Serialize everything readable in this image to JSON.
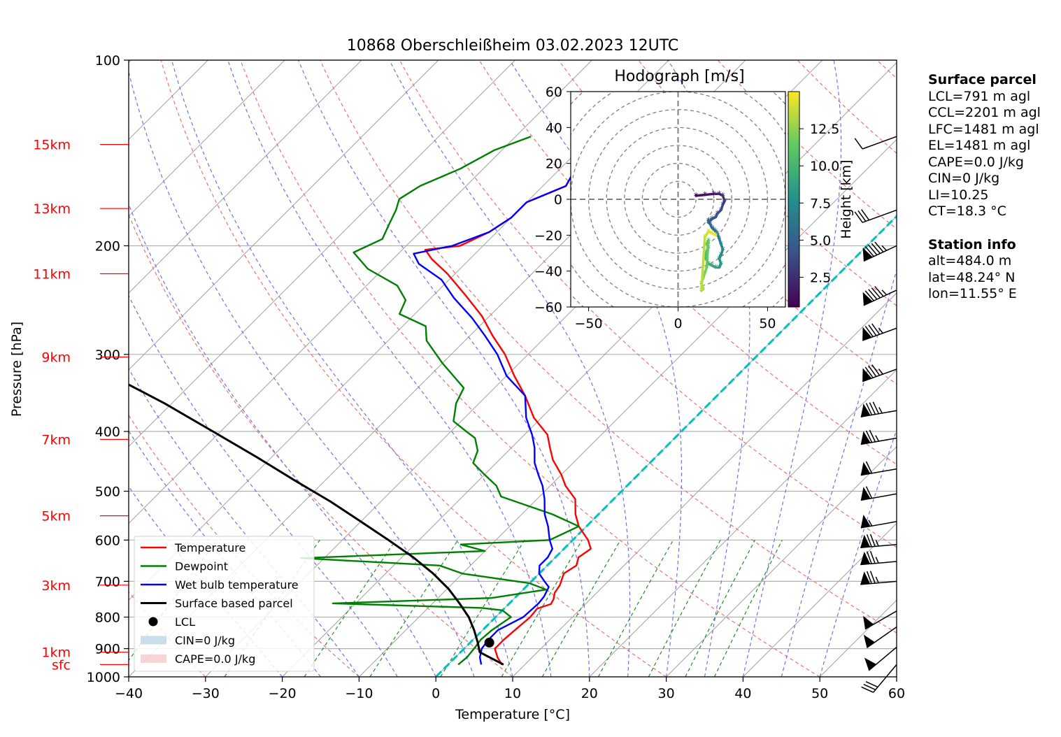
{
  "chart_data": {
    "type": "skew-t",
    "title": "10868 Oberschleißheim 03.02.2023 12UTC",
    "xlabel": "Temperature [°C]",
    "ylabel": "Pressure [hPa]",
    "xlim": [
      -40,
      60
    ],
    "ylim": [
      1000,
      100
    ],
    "x_ticks": [
      -40,
      -30,
      -20,
      -10,
      0,
      10,
      20,
      30,
      40,
      50,
      60
    ],
    "p_ticks": [
      100,
      200,
      300,
      400,
      500,
      600,
      700,
      800,
      900,
      1000
    ],
    "height_labels": [
      {
        "label": "15km",
        "p": 137
      },
      {
        "label": "13km",
        "p": 174
      },
      {
        "label": "11km",
        "p": 222
      },
      {
        "label": "9km",
        "p": 303
      },
      {
        "label": "7km",
        "p": 412
      },
      {
        "label": "5km",
        "p": 548
      },
      {
        "label": "3km",
        "p": 710
      },
      {
        "label": "1km",
        "p": 912
      },
      {
        "label": "sfc",
        "p": 955
      }
    ],
    "legend_position": "lower-left",
    "legend": [
      "Temperature",
      "Dewpoint",
      "Wet bulb temperature",
      "Surface based parcel",
      "LCL",
      "CIN=0 J/kg",
      "CAPE=0.0 J/kg"
    ],
    "colors": {
      "temperature": "#ff0000",
      "dewpoint": "#008000",
      "wetbulb": "#0000ff",
      "parcel": "#000000",
      "isotherm": "#00c0c0",
      "dry_adiabat": "#f07070",
      "moist_adiabat": "#7070f0",
      "mixing_ratio": "#209020",
      "skew_isotherm": "#a0a0a0",
      "height_label": "#ff0000",
      "cin": "#a8c8e0",
      "cape": "#f4b8b8"
    },
    "zero_isotherm_dashed": true,
    "series": [
      {
        "name": "Temperature",
        "points": [
          [
            7.0,
            955
          ],
          [
            5.5,
            930
          ],
          [
            4.0,
            900
          ],
          [
            4.0,
            870
          ],
          [
            4.2,
            840
          ],
          [
            4.5,
            800
          ],
          [
            4.3,
            775
          ],
          [
            5.5,
            762
          ],
          [
            5.2,
            748
          ],
          [
            4.5,
            730
          ],
          [
            4.2,
            710
          ],
          [
            3.2,
            680
          ],
          [
            3.8,
            660
          ],
          [
            3.0,
            640
          ],
          [
            3.5,
            620
          ],
          [
            2.0,
            600
          ],
          [
            -1,
            570
          ],
          [
            -3,
            545
          ],
          [
            -5,
            515
          ],
          [
            -8,
            490
          ],
          [
            -10,
            470
          ],
          [
            -13,
            445
          ],
          [
            -15,
            425
          ],
          [
            -17,
            405
          ],
          [
            -21,
            380
          ],
          [
            -25,
            350
          ],
          [
            -29,
            325
          ],
          [
            -33,
            300
          ],
          [
            -37,
            280
          ],
          [
            -41,
            260
          ],
          [
            -46,
            240
          ],
          [
            -51,
            222
          ],
          [
            -55,
            210
          ],
          [
            -57,
            203
          ],
          [
            -53,
            200
          ],
          [
            -51,
            190
          ],
          [
            -50,
            180
          ],
          [
            -50,
            170
          ],
          [
            -47,
            160
          ],
          [
            -48,
            150
          ],
          [
            -46,
            140
          ],
          [
            -45,
            133
          ]
        ]
      },
      {
        "name": "Dewpoint",
        "points": [
          [
            1.3,
            955
          ],
          [
            1.5,
            930
          ],
          [
            1.3,
            900
          ],
          [
            1.0,
            870
          ],
          [
            1.2,
            840
          ],
          [
            2.0,
            800
          ],
          [
            0.0,
            780
          ],
          [
            -3.0,
            773
          ],
          [
            -23,
            760
          ],
          [
            -3,
            745
          ],
          [
            3.0,
            722
          ],
          [
            0.0,
            705
          ],
          [
            -10,
            680
          ],
          [
            -14,
            660
          ],
          [
            -33,
            642
          ],
          [
            -10,
            625
          ],
          [
            -14,
            610
          ],
          [
            -3,
            600
          ],
          [
            -1,
            570
          ],
          [
            -6,
            545
          ],
          [
            -15,
            510
          ],
          [
            -17,
            490
          ],
          [
            -20,
            470
          ],
          [
            -23,
            450
          ],
          [
            -24,
            430
          ],
          [
            -26,
            410
          ],
          [
            -28,
            400
          ],
          [
            -31,
            385
          ],
          [
            -33,
            360
          ],
          [
            -34,
            340
          ],
          [
            -40,
            310
          ],
          [
            -45,
            285
          ],
          [
            -47,
            270
          ],
          [
            -52,
            258
          ],
          [
            -53,
            245
          ],
          [
            -56,
            232
          ],
          [
            -62,
            218
          ],
          [
            -66,
            205
          ],
          [
            -64,
            195
          ],
          [
            -65,
            185
          ],
          [
            -66,
            175
          ],
          [
            -67,
            168
          ],
          [
            -66,
            160
          ],
          [
            -63,
            150
          ],
          [
            -61,
            140
          ],
          [
            -58,
            133
          ]
        ]
      },
      {
        "name": "Wet bulb temperature",
        "points": [
          [
            4.3,
            955
          ],
          [
            3.2,
            930
          ],
          [
            2.3,
            900
          ],
          [
            2.0,
            870
          ],
          [
            2.0,
            840
          ],
          [
            3.6,
            800
          ],
          [
            3.8,
            760
          ],
          [
            3.6,
            740
          ],
          [
            3.0,
            715
          ],
          [
            1.7,
            700
          ],
          [
            0.0,
            680
          ],
          [
            -1.0,
            660
          ],
          [
            -1.0,
            640
          ],
          [
            -1.5,
            620
          ],
          [
            -3.0,
            600
          ],
          [
            -5,
            570
          ],
          [
            -7,
            545
          ],
          [
            -9,
            515
          ],
          [
            -11,
            490
          ],
          [
            -13,
            470
          ],
          [
            -15,
            450
          ],
          [
            -17,
            425
          ],
          [
            -19,
            405
          ],
          [
            -22,
            380
          ],
          [
            -25,
            350
          ],
          [
            -30,
            325
          ],
          [
            -34,
            300
          ],
          [
            -38,
            280
          ],
          [
            -42,
            262
          ],
          [
            -47,
            243
          ],
          [
            -51,
            227
          ],
          [
            -56,
            214
          ],
          [
            -58,
            206
          ],
          [
            -54,
            200
          ],
          [
            -51,
            190
          ],
          [
            -50,
            180
          ],
          [
            -50,
            170
          ],
          [
            -47,
            160
          ],
          [
            -48,
            150
          ],
          [
            -46,
            140
          ],
          [
            -45,
            133
          ]
        ]
      },
      {
        "name": "Surface based parcel",
        "points": [
          [
            7.2,
            955
          ],
          [
            2.5,
            912
          ],
          [
            1.0,
            880
          ],
          [
            -1.1,
            840
          ],
          [
            -3.5,
            800
          ],
          [
            -6.5,
            760
          ],
          [
            -9.8,
            720
          ],
          [
            -13.8,
            680
          ],
          [
            -18.5,
            640
          ],
          [
            -24,
            600
          ],
          [
            -30,
            560
          ],
          [
            -36.5,
            520
          ],
          [
            -44,
            480
          ],
          [
            -52,
            440
          ],
          [
            -61,
            400
          ],
          [
            -71,
            360
          ],
          [
            -83,
            320
          ],
          [
            -96,
            280
          ],
          [
            -112,
            240
          ],
          [
            -120,
            222
          ]
        ]
      }
    ],
    "lcl": {
      "t": 2.5,
      "p": 880
    },
    "hodograph": {
      "title": "Hodograph [m/s]",
      "xlim": [
        -60,
        60
      ],
      "ylim": [
        -60,
        60
      ],
      "x_ticks": [
        -50,
        0,
        50
      ],
      "y_ticks": [
        60,
        40,
        20,
        0,
        -20,
        -40,
        -60
      ],
      "ring_step": 10,
      "colorbar": {
        "label": "Height [km]",
        "ticks": [
          2.5,
          5.0,
          7.5,
          10.0,
          12.5
        ],
        "min": 0.5,
        "max": 15
      },
      "points": [
        [
          10,
          2,
          0.5
        ],
        [
          15,
          2.5,
          1.0
        ],
        [
          20,
          3,
          1.5
        ],
        [
          23,
          3,
          2.0
        ],
        [
          25,
          2,
          2.4
        ],
        [
          26,
          -1,
          2.8
        ],
        [
          25,
          -3,
          3.1
        ],
        [
          24,
          -6,
          3.4
        ],
        [
          22,
          -8,
          3.7
        ],
        [
          21,
          -10,
          4.0
        ],
        [
          19,
          -11,
          4.2
        ],
        [
          18,
          -12,
          4.3
        ],
        [
          17,
          -13,
          4.6
        ],
        [
          17,
          -12,
          4.8
        ],
        [
          18,
          -14,
          5.0
        ],
        [
          19,
          -16,
          5.3
        ],
        [
          20,
          -17,
          5.6
        ],
        [
          21,
          -18,
          5.8
        ],
        [
          22,
          -19,
          6.0
        ],
        [
          23,
          -22,
          6.3
        ],
        [
          24,
          -25,
          6.6
        ],
        [
          25,
          -28,
          7.0
        ],
        [
          24,
          -31,
          7.3
        ],
        [
          23,
          -33,
          7.7
        ],
        [
          24,
          -36,
          8.0
        ],
        [
          23,
          -38,
          8.3
        ],
        [
          21,
          -38,
          8.6
        ],
        [
          19,
          -37,
          9.0
        ],
        [
          17,
          -36,
          9.3
        ],
        [
          16,
          -34,
          9.6
        ],
        [
          15,
          -32,
          10.0
        ],
        [
          16,
          -29,
          10.3
        ],
        [
          17,
          -27,
          10.6
        ],
        [
          16,
          -25,
          10.9
        ],
        [
          17,
          -23,
          11.2
        ],
        [
          16,
          -38,
          11.5
        ],
        [
          15,
          -41,
          11.8
        ],
        [
          14,
          -44,
          12.1
        ],
        [
          13,
          -47,
          12.4
        ],
        [
          14,
          -50,
          12.7
        ],
        [
          13,
          -51,
          12.9
        ],
        [
          15,
          -21,
          13.5
        ],
        [
          17,
          -18,
          14.0
        ],
        [
          19,
          -19,
          14.3
        ],
        [
          21,
          -20,
          14.6
        ]
      ]
    },
    "wind_barbs": [
      {
        "p": 133,
        "dir": 290,
        "spd_kt": 10
      },
      {
        "p": 175,
        "dir": 290,
        "spd_kt": 30
      },
      {
        "p": 200,
        "dir": 285,
        "spd_kt": 95
      },
      {
        "p": 236,
        "dir": 285,
        "spd_kt": 95
      },
      {
        "p": 272,
        "dir": 290,
        "spd_kt": 85
      },
      {
        "p": 317,
        "dir": 290,
        "spd_kt": 85
      },
      {
        "p": 370,
        "dir": 300,
        "spd_kt": 85
      },
      {
        "p": 410,
        "dir": 300,
        "spd_kt": 75
      },
      {
        "p": 460,
        "dir": 300,
        "spd_kt": 60
      },
      {
        "p": 505,
        "dir": 300,
        "spd_kt": 60
      },
      {
        "p": 560,
        "dir": 300,
        "spd_kt": 55
      },
      {
        "p": 610,
        "dir": 305,
        "spd_kt": 75
      },
      {
        "p": 650,
        "dir": 305,
        "spd_kt": 75
      },
      {
        "p": 700,
        "dir": 305,
        "spd_kt": 75
      },
      {
        "p": 782,
        "dir": 280,
        "spd_kt": 50
      },
      {
        "p": 830,
        "dir": 275,
        "spd_kt": 50
      },
      {
        "p": 895,
        "dir": 270,
        "spd_kt": 50
      },
      {
        "p": 955,
        "dir": 260,
        "spd_kt": 30
      }
    ]
  },
  "surface_parcel": {
    "header": "Surface parcel",
    "lines": [
      "LCL=791 m agl",
      "CCL=2201 m agl",
      "LFC=1481 m agl",
      "EL=1481 m agl",
      "CAPE=0.0 J/kg",
      "CIN=0 J/kg",
      "LI=10.25",
      "CT=18.3 °C"
    ]
  },
  "station_info": {
    "header": "Station info",
    "lines": [
      "alt=484.0 m",
      "lat=48.24° N",
      "lon=11.55° E"
    ]
  }
}
